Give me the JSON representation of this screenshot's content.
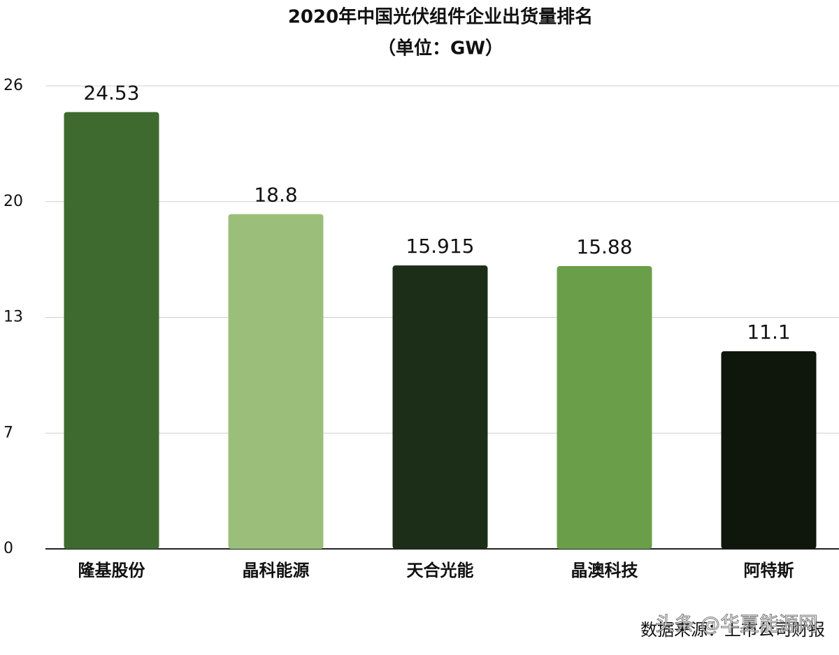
{
  "chart_data": {
    "type": "bar",
    "title": "2020年中国光伏组件企业出货量排名",
    "subtitle": "（单位：GW）",
    "categories": [
      "隆基股份",
      "晶科能源",
      "天合光能",
      "晶澳科技",
      "阿特斯"
    ],
    "values": [
      24.53,
      18.8,
      15.915,
      15.88,
      11.1
    ],
    "colors": [
      "#3e6a30",
      "#9bbf7b",
      "#1c2d18",
      "#6a9e49",
      "#0f170d"
    ],
    "ylim": [
      0,
      26
    ],
    "yticks": [
      0,
      {
        "value": 6.5,
        "label": "7"
      },
      13,
      {
        "value": 19.5,
        "label": "20"
      },
      26
    ],
    "grid": true,
    "source": "数据来源：上市公司财报",
    "watermark": "头条 @华夏能源网"
  }
}
